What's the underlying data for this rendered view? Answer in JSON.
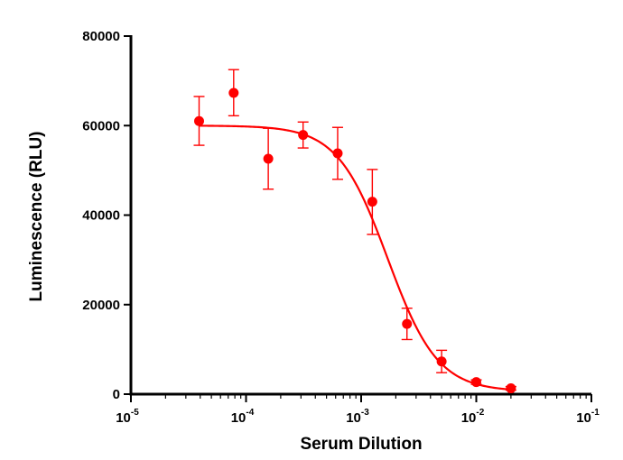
{
  "chart_data": {
    "type": "scatter",
    "xlabel": "Serum Dilution",
    "ylabel": "Luminescence (RLU)",
    "x_scale": "log",
    "xlim": [
      1e-05,
      0.1
    ],
    "ylim": [
      0,
      80000
    ],
    "x_ticks": [
      {
        "base": "10",
        "exp": "-5",
        "value": 1e-05
      },
      {
        "base": "10",
        "exp": "-4",
        "value": 0.0001
      },
      {
        "base": "10",
        "exp": "-3",
        "value": 0.001
      },
      {
        "base": "10",
        "exp": "-2",
        "value": 0.01
      },
      {
        "base": "10",
        "exp": "-1",
        "value": 0.1
      }
    ],
    "y_ticks": [
      "0",
      "20000",
      "40000",
      "60000",
      "80000"
    ],
    "color": "#ff0000",
    "series": [
      {
        "points": [
          {
            "x": 3.91e-05,
            "y": 61000,
            "err_low": 55600,
            "err_high": 66500
          },
          {
            "x": 7.81e-05,
            "y": 67300,
            "err_low": 62200,
            "err_high": 72500
          },
          {
            "x": 0.000156,
            "y": 52600,
            "err_low": 45800,
            "err_high": 59400
          },
          {
            "x": 0.000313,
            "y": 57900,
            "err_low": 55000,
            "err_high": 60800
          },
          {
            "x": 0.000625,
            "y": 53800,
            "err_low": 48000,
            "err_high": 59600
          },
          {
            "x": 0.00125,
            "y": 43000,
            "err_low": 35700,
            "err_high": 50200
          },
          {
            "x": 0.0025,
            "y": 15700,
            "err_low": 12200,
            "err_high": 19200
          },
          {
            "x": 0.005,
            "y": 7300,
            "err_low": 4800,
            "err_high": 9800
          },
          {
            "x": 0.01,
            "y": 2700,
            "err_low": 2200,
            "err_high": 3200
          },
          {
            "x": 0.02,
            "y": 1300,
            "err_low": 900,
            "err_high": 1700
          }
        ],
        "fit": {
          "model": "four-parameter logistic",
          "top": 60000,
          "bottom": 600,
          "ic50": 0.0017,
          "hill_slope": 2.0,
          "x_range": [
            3.91e-05,
            0.02
          ]
        }
      }
    ],
    "grid": false
  }
}
